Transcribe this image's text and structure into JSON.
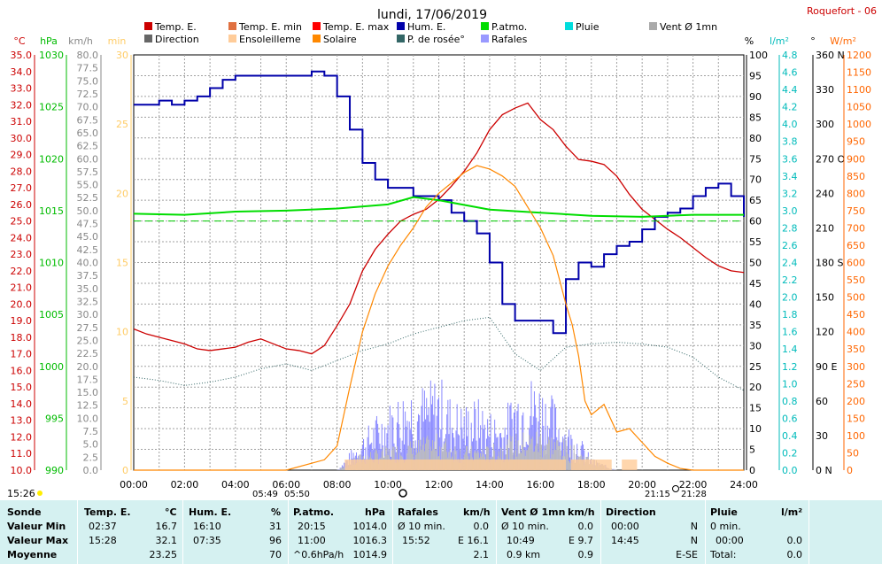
{
  "chart_data": {
    "type": "line",
    "title": "lundi, 17/06/2019",
    "station": "Roquefort - 06",
    "x_ticks": [
      "00:00",
      "02:00",
      "04:00",
      "06:00",
      "08:00",
      "10:00",
      "12:00",
      "14:00",
      "16:00",
      "18:00",
      "20:00",
      "22:00",
      "24:00"
    ],
    "x_range_hours": [
      0,
      24
    ],
    "grid": true,
    "legend_placement": "top",
    "legend": [
      {
        "label": "Temp. E.",
        "color": "#cc0000"
      },
      {
        "label": "Temp. E. min",
        "color": "#e07040"
      },
      {
        "label": "Temp. E. max",
        "color": "#ff0000"
      },
      {
        "label": "Hum. E.",
        "color": "#0000aa"
      },
      {
        "label": "P.atmo.",
        "color": "#00dd00"
      },
      {
        "label": "Pluie",
        "color": "#00dddd"
      },
      {
        "label": "Vent Ø 1mn",
        "color": "#aaaaaa"
      },
      {
        "label": "Direction",
        "color": "#666666"
      },
      {
        "label": "Ensoleilleme",
        "color": "#ffcc99"
      },
      {
        "label": "Solaire",
        "color": "#ff8800"
      },
      {
        "label": "P. de rosée°",
        "color": "#336666"
      },
      {
        "label": "Rafales",
        "color": "#9999ff"
      }
    ],
    "axes": {
      "temp": {
        "unit": "°C",
        "ticks": [
          "35.0",
          "34.0",
          "33.0",
          "32.0",
          "31.0",
          "30.0",
          "29.0",
          "28.0",
          "27.0",
          "26.0",
          "25.0",
          "24.0",
          "23.0",
          "22.0",
          "21.0",
          "20.0",
          "19.0",
          "18.0",
          "17.0",
          "16.0",
          "15.0",
          "14.0",
          "13.0",
          "12.0",
          "11.0",
          "10.0"
        ],
        "range": [
          10,
          35
        ],
        "color": "#cc0000"
      },
      "pressure": {
        "unit": "hPa",
        "ticks": [
          "1030",
          "1025",
          "1020",
          "1015",
          "1010",
          "1005",
          "1000",
          "995",
          "990"
        ],
        "range": [
          990,
          1030
        ],
        "color": "#00bb00"
      },
      "wind": {
        "unit": "km/h",
        "ticks": [
          "80.0",
          "77.5",
          "75.0",
          "72.5",
          "70.0",
          "67.5",
          "65.0",
          "62.5",
          "60.0",
          "57.5",
          "55.0",
          "52.5",
          "50.0",
          "47.5",
          "45.0",
          "42.5",
          "40.0",
          "37.5",
          "35.0",
          "32.5",
          "30.0",
          "27.5",
          "25.0",
          "22.5",
          "20.0",
          "17.5",
          "15.0",
          "12.5",
          "10.0",
          "7.5",
          "5.0",
          "2.5",
          "0.0"
        ],
        "range": [
          0,
          80
        ],
        "color": "#888888"
      },
      "sun": {
        "unit": "min",
        "ticks": [
          "30",
          "25",
          "20",
          "15",
          "10",
          "5",
          "0"
        ],
        "range": [
          0,
          30
        ],
        "color": "#ffcc66"
      },
      "humidity": {
        "unit": "%",
        "ticks": [
          "100",
          "95",
          "90",
          "85",
          "80",
          "75",
          "70",
          "65",
          "60",
          "55",
          "50",
          "45",
          "40",
          "35",
          "30",
          "25",
          "20",
          "15",
          "10",
          "5",
          "0"
        ],
        "range": [
          0,
          100
        ],
        "color": "#000000"
      },
      "rain": {
        "unit": "l/m²",
        "ticks": [
          "4.8",
          "4.6",
          "4.4",
          "4.2",
          "4.0",
          "3.8",
          "3.6",
          "3.4",
          "3.2",
          "3.0",
          "2.8",
          "2.6",
          "2.4",
          "2.2",
          "2.0",
          "1.8",
          "1.6",
          "1.4",
          "1.2",
          "1.0",
          "0.8",
          "0.6",
          "0.4",
          "0.2",
          "0.0"
        ],
        "range": [
          0,
          5
        ],
        "color": "#00bbbb"
      },
      "direction": {
        "unit": "°",
        "ticks": [
          "360 N",
          "330",
          "300",
          "270 O",
          "240",
          "210",
          "180 S",
          "150",
          "120",
          "90 E",
          "60",
          "30",
          "0 N"
        ],
        "range": [
          0,
          360
        ],
        "color": "#000000"
      },
      "solar": {
        "unit": "W/m²",
        "ticks": [
          "1200",
          "1150",
          "1100",
          "1050",
          "1000",
          "950",
          "900",
          "850",
          "800",
          "750",
          "700",
          "650",
          "600",
          "550",
          "500",
          "450",
          "400",
          "350",
          "300",
          "250",
          "200",
          "150",
          "100",
          "50",
          "0"
        ],
        "range": [
          0,
          1200
        ],
        "color": "#ff6600"
      }
    },
    "series": [
      {
        "name": "Temp. E.",
        "axis": "temp",
        "x": [
          0,
          0.5,
          1,
          1.5,
          2,
          2.5,
          3,
          3.5,
          4,
          4.5,
          5,
          5.5,
          6,
          6.5,
          7,
          7.5,
          8,
          8.5,
          9,
          9.5,
          10,
          10.5,
          11,
          11.5,
          12,
          12.5,
          13,
          13.5,
          14,
          14.5,
          15,
          15.5,
          16,
          16.5,
          17,
          17.5,
          18,
          18.5,
          19,
          19.5,
          20,
          20.5,
          21,
          21.5,
          22,
          22.5,
          23,
          23.5,
          24
        ],
        "y": [
          18.5,
          18.2,
          18.0,
          17.8,
          17.6,
          17.3,
          17.2,
          17.3,
          17.4,
          17.7,
          17.9,
          17.6,
          17.3,
          17.2,
          17.0,
          17.5,
          18.7,
          20.0,
          22.0,
          23.3,
          24.2,
          25.0,
          25.4,
          25.7,
          26.3,
          27.1,
          28.0,
          29.1,
          30.5,
          31.4,
          31.8,
          32.1,
          31.1,
          30.5,
          29.5,
          28.7,
          28.6,
          28.4,
          27.7,
          26.6,
          25.7,
          25.1,
          24.5,
          24.0,
          23.4,
          22.8,
          22.3,
          22.0,
          21.9
        ]
      },
      {
        "name": "Hum. E.",
        "axis": "humidity",
        "x": [
          0,
          0.5,
          1,
          1.5,
          2,
          2.5,
          3,
          3.5,
          4,
          4.5,
          5,
          5.5,
          6,
          6.5,
          7,
          7.5,
          8,
          8.5,
          9,
          9.5,
          10,
          10.5,
          11,
          11.5,
          12,
          12.5,
          13,
          13.5,
          14,
          14.5,
          15,
          15.5,
          16,
          16.5,
          17,
          17.5,
          18,
          18.5,
          19,
          19.5,
          20,
          20.5,
          21,
          21.5,
          22,
          22.5,
          23,
          23.5,
          24
        ],
        "y": [
          88,
          88,
          89,
          88,
          89,
          90,
          92,
          94,
          95,
          95,
          95,
          95,
          95,
          95,
          96,
          95,
          90,
          82,
          74,
          70,
          68,
          68,
          66,
          66,
          65,
          62,
          60,
          57,
          50,
          40,
          36,
          36,
          36,
          33,
          46,
          50,
          49,
          52,
          54,
          55,
          58,
          61,
          62,
          63,
          66,
          68,
          69,
          66,
          61
        ]
      },
      {
        "name": "P.atmo.",
        "axis": "pressure",
        "x": [
          0,
          2,
          4,
          6,
          8,
          10,
          11,
          12,
          14,
          16,
          18,
          20,
          22,
          24
        ],
        "y": [
          1014.7,
          1014.6,
          1014.9,
          1015.0,
          1015.2,
          1015.6,
          1016.3,
          1016.0,
          1015.1,
          1014.8,
          1014.5,
          1014.4,
          1014.6,
          1014.6
        ]
      },
      {
        "name": "P. de rosée°",
        "axis": "temp",
        "x": [
          0,
          1,
          2,
          3,
          4,
          5,
          6,
          7,
          8,
          9,
          10,
          11,
          12,
          13,
          14,
          15,
          16,
          17,
          18,
          19,
          20,
          21,
          22,
          23,
          24
        ],
        "y": [
          15.6,
          15.4,
          15.1,
          15.3,
          15.6,
          16.1,
          16.4,
          16.0,
          16.6,
          17.2,
          17.6,
          18.2,
          18.6,
          19.0,
          19.2,
          17.0,
          16.0,
          17.4,
          17.6,
          17.7,
          17.6,
          17.4,
          16.8,
          15.6,
          14.8
        ]
      },
      {
        "name": "Solaire",
        "axis": "solar",
        "x": [
          0,
          6,
          7,
          7.5,
          8,
          8.5,
          9,
          9.5,
          10,
          10.5,
          11,
          11.5,
          12,
          12.5,
          13,
          13.5,
          14,
          14.5,
          15,
          15.5,
          16,
          16.5,
          17,
          17.25,
          17.5,
          17.75,
          18,
          18.5,
          19,
          19.5,
          20,
          20.5,
          21,
          21.5,
          22,
          24
        ],
        "y": [
          0,
          0,
          20,
          30,
          70,
          240,
          400,
          510,
          590,
          650,
          700,
          760,
          800,
          830,
          860,
          880,
          870,
          850,
          820,
          760,
          700,
          620,
          480,
          420,
          330,
          200,
          160,
          190,
          110,
          120,
          80,
          40,
          20,
          5,
          0,
          0
        ]
      },
      {
        "name": "Rafales",
        "axis": "wind",
        "x": [
          0,
          8,
          8.5,
          9,
          9.5,
          10,
          10.5,
          11,
          11.5,
          12,
          12.5,
          13,
          13.5,
          14,
          14.5,
          15,
          15.5,
          16,
          16.5,
          17,
          17.5,
          18,
          18.5,
          19,
          24
        ],
        "y": [
          0,
          0,
          3,
          6,
          9,
          11,
          13,
          15,
          14,
          16,
          12,
          11,
          12,
          10,
          9,
          14,
          16,
          15,
          12,
          8,
          6,
          2,
          1,
          0,
          0
        ]
      },
      {
        "name": "Vent Ø 1mn",
        "axis": "wind",
        "x": [
          0,
          8,
          9,
          10,
          11,
          12,
          13,
          14,
          15,
          16,
          17,
          18,
          19,
          24
        ],
        "y": [
          0,
          0,
          3,
          4,
          5,
          6,
          4,
          4,
          6,
          7,
          5,
          2,
          0,
          0
        ]
      }
    ]
  },
  "footer": {
    "left_time": "15:26",
    "sunrise_left": "05:49",
    "sunrise_right": "05:50",
    "sunset_left": "21:15",
    "sunset_right": "21:28"
  },
  "stats": {
    "sonde": {
      "header": "Sonde",
      "row1": "Valeur Min",
      "row2": "Valeur Max",
      "row3": "Moyenne"
    },
    "temp": {
      "header": "Temp. E.",
      "unit": "°C",
      "min_time": "02:37",
      "min_val": "16.7",
      "max_time": "15:28",
      "max_val": "32.1",
      "avg_val": "23.25"
    },
    "hum": {
      "header": "Hum. E.",
      "unit": "%",
      "min_time": "16:10",
      "min_val": "31",
      "max_time": "07:35",
      "max_val": "96",
      "avg_val": "70"
    },
    "patmo": {
      "header": "P.atmo.",
      "unit": "hPa",
      "min_time": "20:15",
      "min_val": "1014.0",
      "max_time": "11:00",
      "max_val": "1016.3",
      "avg_label": "^0.6hPa/h",
      "avg_val": "1014.9"
    },
    "rafales": {
      "header": "Rafales",
      "unit": "km/h",
      "row1_label": "Ø 10 min.",
      "row1_val": "0.0",
      "row2_time": "15:52",
      "row2_val": "E 16.1",
      "avg_val": "2.1"
    },
    "vent": {
      "header": "Vent Ø 1mn",
      "unit": "km/h",
      "row1_label": "Ø 10 min.",
      "row1_val": "0.0",
      "row2_time": "10:49",
      "row2_val": "E 9.7",
      "avg_label": "0.9 km",
      "avg_val": "0.9"
    },
    "direction": {
      "header": "Direction",
      "row1_time": "00:00",
      "row1_val": "N",
      "row2_time": "14:45",
      "row2_val": "N",
      "avg_val": "E-SE"
    },
    "pluie": {
      "header": "Pluie",
      "unit": "l/m²",
      "row1_label": "0 min.",
      "row2_time": "00:00",
      "row2_val": "0.0",
      "row3_label": "Total:",
      "row3_val": "0.0"
    }
  }
}
